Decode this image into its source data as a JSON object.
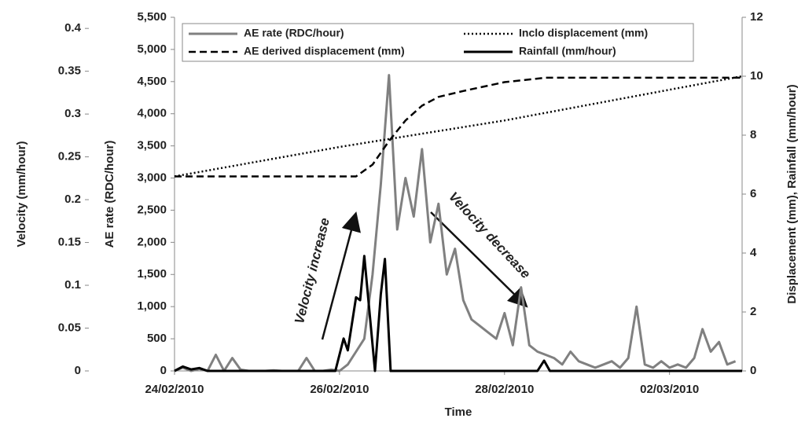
{
  "chart_data": {
    "type": "line",
    "x_label": "Time",
    "y_label": "AE rate (RDC/hour)",
    "y2_label": "Displacement (mm), Rainfall (mm/hour)",
    "velocity_axis": {
      "label": "Velocity (mm/hour)",
      "lim": [
        0,
        0.413
      ],
      "ticks": [
        0,
        0.05,
        0.1,
        0.15,
        0.2,
        0.25,
        0.3,
        0.35,
        0.4
      ]
    },
    "xlim": [
      0,
      6.88
    ],
    "xticks": [
      {
        "value": 0,
        "label": "24/02/2010"
      },
      {
        "value": 2,
        "label": "26/02/2010"
      },
      {
        "value": 4,
        "label": "28/02/2010"
      },
      {
        "value": 6,
        "label": "02/03/2010"
      }
    ],
    "ylim": [
      0,
      5500
    ],
    "yticks": [
      0,
      500,
      {
        "value": 1000,
        "label": "1,000"
      },
      {
        "value": 1500,
        "label": "1,500"
      },
      {
        "value": 2000,
        "label": "2,000"
      },
      {
        "value": 2500,
        "label": "2,500"
      },
      {
        "value": 3000,
        "label": "3,000"
      },
      {
        "value": 3500,
        "label": "3,500"
      },
      {
        "value": 4000,
        "label": "4,000"
      },
      {
        "value": 4500,
        "label": "4,500"
      },
      {
        "value": 5000,
        "label": "5,000"
      },
      {
        "value": 5500,
        "label": "5,500"
      }
    ],
    "y2lim": [
      0,
      12
    ],
    "y2ticks": [
      0,
      2,
      4,
      6,
      8,
      10,
      12
    ],
    "series": [
      {
        "name": "AE rate (RDC/hour)",
        "color": "#808080",
        "style": "solid",
        "axis": "y",
        "x": [
          0,
          0.1,
          0.2,
          0.3,
          0.4,
          0.5,
          0.6,
          0.7,
          0.8,
          0.9,
          1.0,
          1.1,
          1.2,
          1.3,
          1.4,
          1.5,
          1.6,
          1.7,
          1.8,
          1.9,
          2.0,
          2.1,
          2.2,
          2.3,
          2.4,
          2.5,
          2.6,
          2.7,
          2.8,
          2.9,
          3.0,
          3.1,
          3.2,
          3.3,
          3.4,
          3.5,
          3.6,
          3.7,
          3.8,
          3.9,
          4.0,
          4.1,
          4.2,
          4.3,
          4.4,
          4.5,
          4.6,
          4.7,
          4.8,
          4.9,
          5.0,
          5.1,
          5.2,
          5.3,
          5.4,
          5.5,
          5.6,
          5.7,
          5.8,
          5.9,
          6.0,
          6.1,
          6.2,
          6.3,
          6.4,
          6.5,
          6.6,
          6.7,
          6.8
        ],
        "values": [
          0,
          50,
          0,
          30,
          0,
          250,
          0,
          200,
          20,
          0,
          0,
          0,
          10,
          0,
          0,
          0,
          200,
          0,
          0,
          20,
          0,
          100,
          300,
          500,
          1500,
          2900,
          4600,
          2200,
          3000,
          2400,
          3450,
          2000,
          2600,
          1500,
          1900,
          1100,
          800,
          700,
          600,
          500,
          900,
          400,
          1300,
          400,
          300,
          250,
          200,
          100,
          300,
          150,
          100,
          50,
          100,
          150,
          50,
          200,
          1000,
          100,
          50,
          150,
          50,
          100,
          50,
          200,
          650,
          300,
          450,
          100,
          150
        ]
      },
      {
        "name": "Inclo displacement (mm)",
        "color": "#000000",
        "style": "dotted",
        "axis": "y2",
        "x": [
          0,
          2,
          4,
          6.88
        ],
        "values": [
          6.6,
          7.6,
          8.5,
          10
        ]
      },
      {
        "name": "AE derived displacement (mm)",
        "color": "#000000",
        "style": "dashed",
        "axis": "y2",
        "x": [
          0,
          2.2,
          2.4,
          2.6,
          2.8,
          3.0,
          3.2,
          3.5,
          4.0,
          4.5,
          6.88
        ],
        "values": [
          6.6,
          6.6,
          7.0,
          7.8,
          8.5,
          9.0,
          9.3,
          9.5,
          9.8,
          9.95,
          9.95
        ]
      },
      {
        "name": "Rainfall (mm/hour)",
        "color": "#000000",
        "style": "solid",
        "axis": "y2",
        "x": [
          0,
          0.1,
          0.2,
          0.3,
          0.4,
          0.5,
          1.95,
          2.05,
          2.1,
          2.2,
          2.25,
          2.3,
          2.43,
          2.5,
          2.55,
          2.62,
          4.4,
          4.48,
          4.55,
          6.88
        ],
        "values": [
          0,
          0.15,
          0.05,
          0.1,
          0,
          0,
          0,
          1.1,
          0.7,
          2.5,
          2.4,
          3.9,
          0,
          2.6,
          3.8,
          0,
          0,
          0.35,
          0,
          0
        ]
      }
    ],
    "annotations": [
      "Velocity increase",
      "Velocity decrease"
    ]
  }
}
